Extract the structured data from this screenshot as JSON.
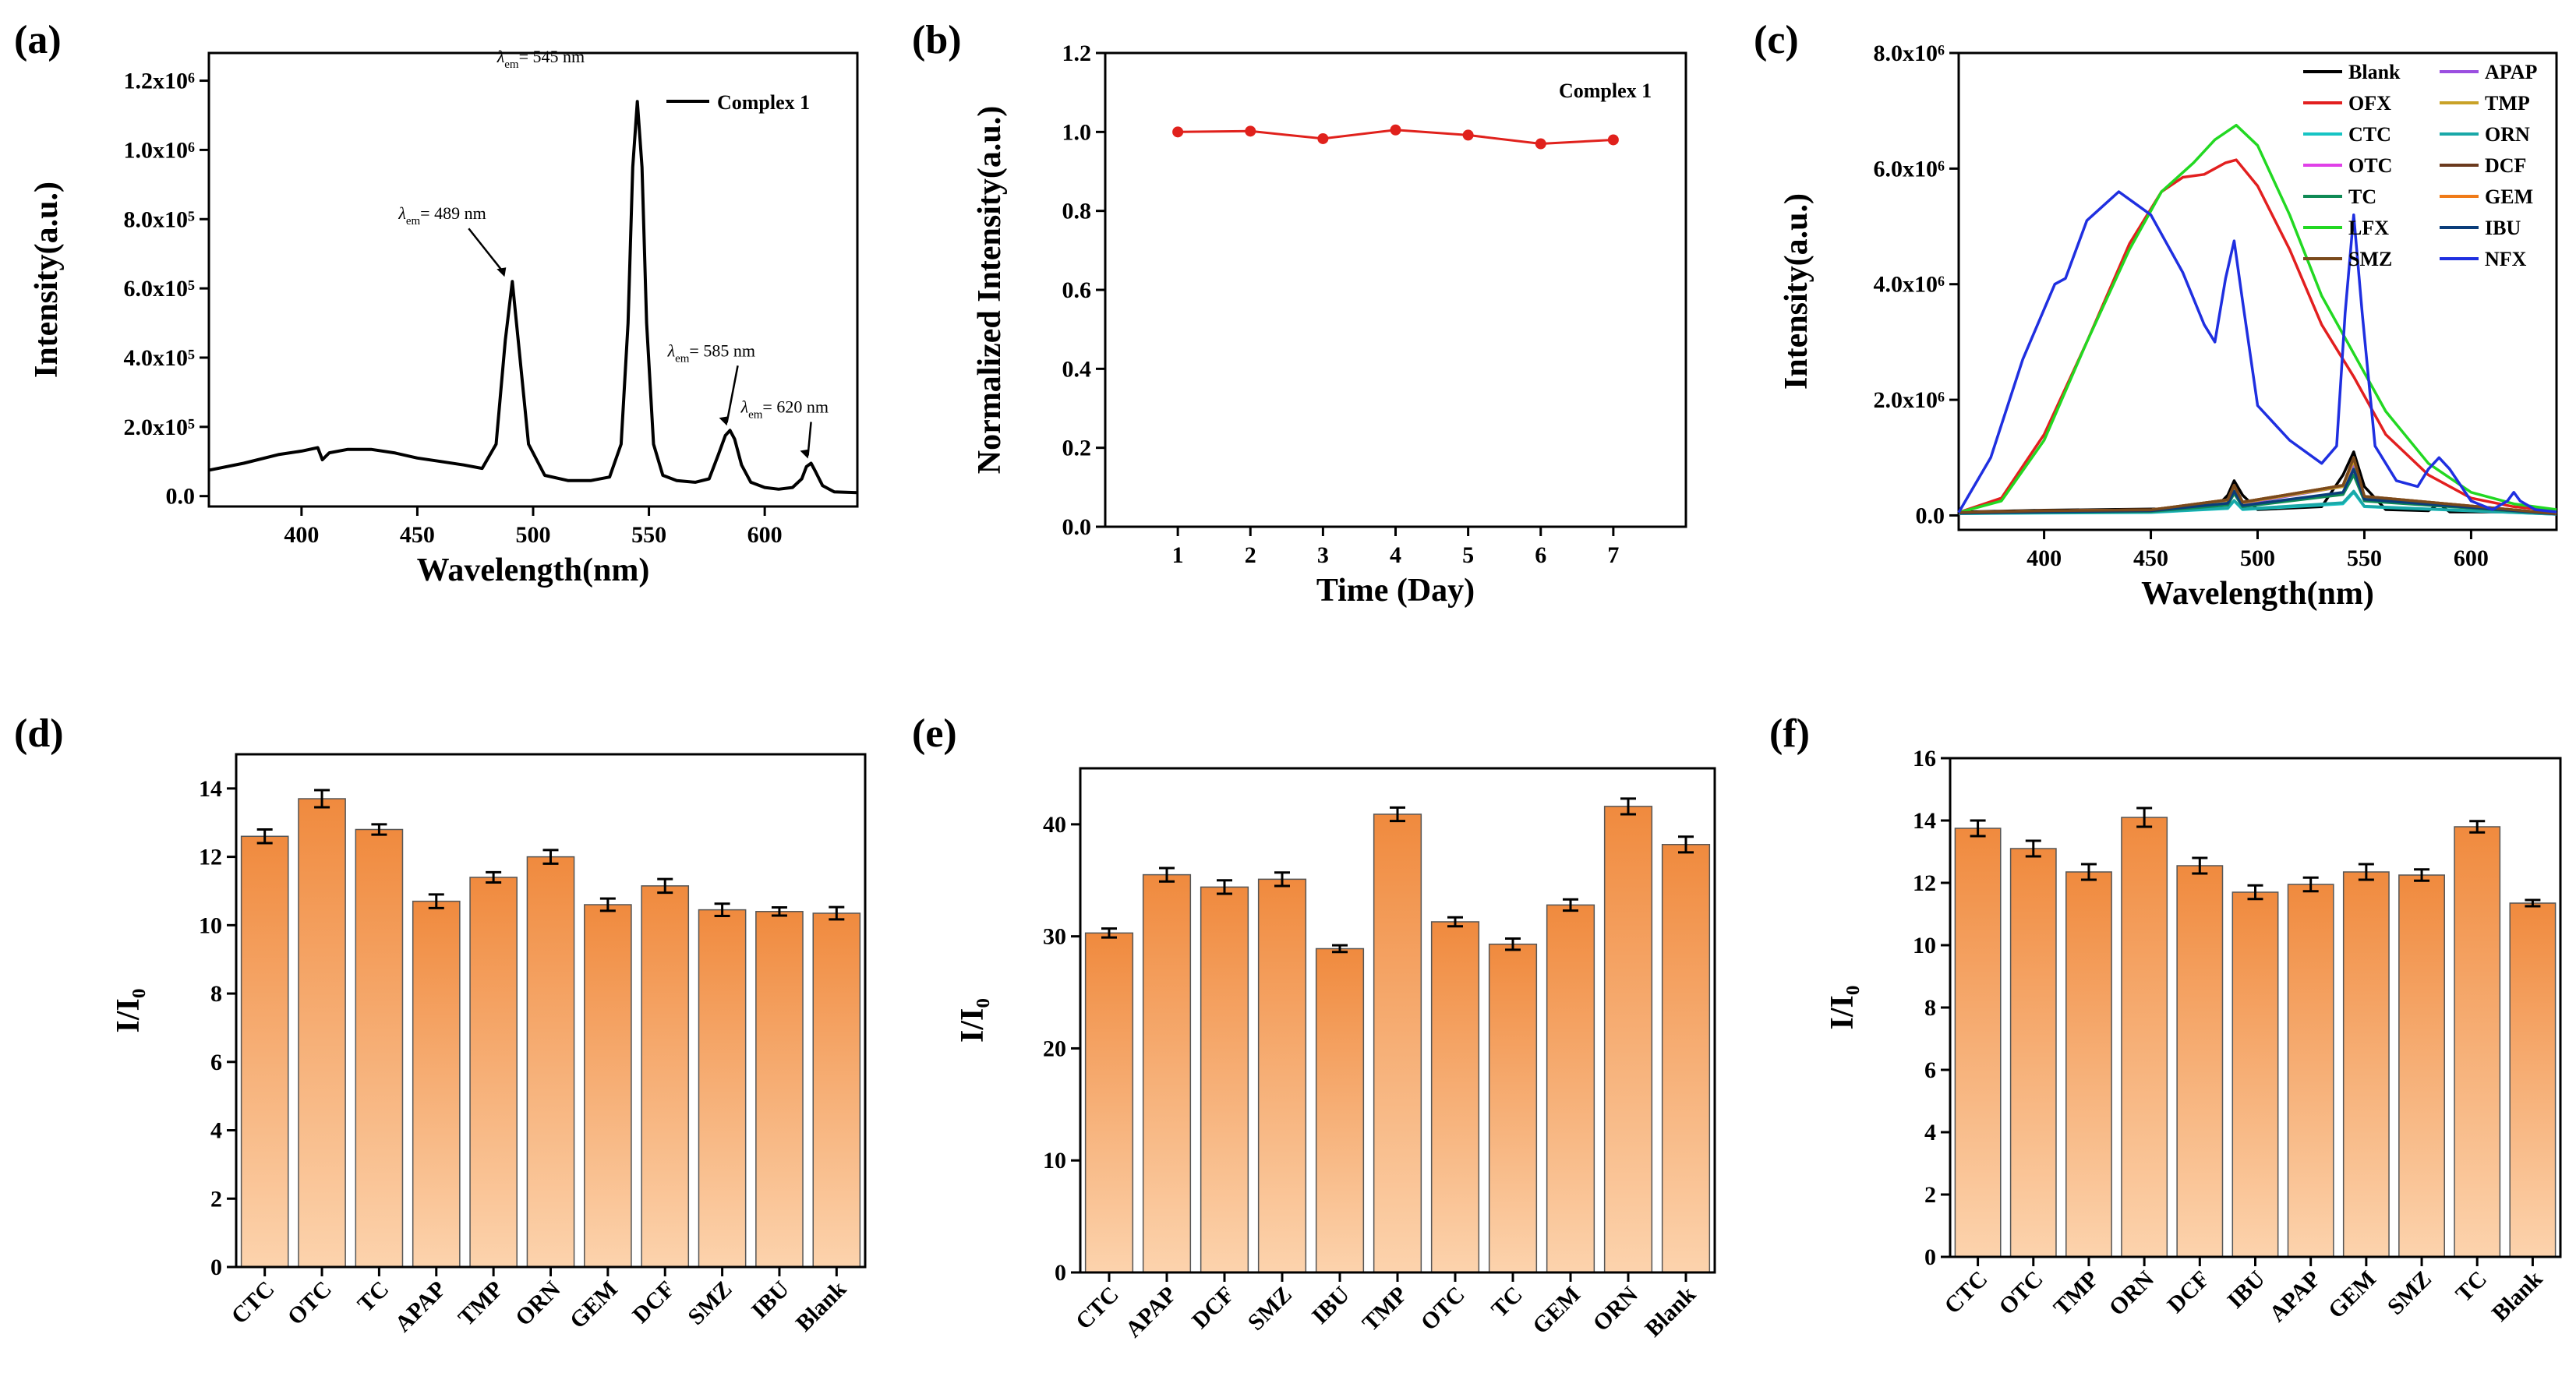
{
  "panels": [
    {
      "letter": "(a)"
    },
    {
      "letter": "(b)"
    },
    {
      "letter": "(c)"
    },
    {
      "letter": "(d)"
    },
    {
      "letter": "(e)"
    },
    {
      "letter": "(f)"
    }
  ],
  "colors": {
    "bar_top": "#f08a3e",
    "bar_bottom": "#fcd3ad",
    "stability_line": "#e0211c",
    "spectrum_line": "#000000"
  },
  "chart_data": [
    {
      "panel": "(a)",
      "type": "line",
      "xlabel": "Wavelength(nm)",
      "ylabel": "Intensity(a.u.)",
      "xlim": [
        360,
        640
      ],
      "ylim": [
        -30000,
        1280000
      ],
      "xticks": [
        400,
        450,
        500,
        550,
        600
      ],
      "xtick_labels": [
        "400",
        "450",
        "500",
        "550",
        "600"
      ],
      "yticks": [
        0,
        200000,
        400000,
        600000,
        800000,
        1000000,
        1200000
      ],
      "ytick_labels": [
        "0.0",
        "2.0x10⁵",
        "4.0x10⁵",
        "6.0x10⁵",
        "8.0x10⁵",
        "1.0x10⁶",
        "1.2x10⁶"
      ],
      "legend": [
        "Complex 1"
      ],
      "series": [
        {
          "name": "Complex 1",
          "color": "#000000",
          "x": [
            360,
            375,
            390,
            400,
            407,
            409,
            412,
            420,
            430,
            440,
            450,
            460,
            470,
            478,
            484,
            488,
            491,
            494,
            498,
            505,
            515,
            525,
            533,
            538,
            541,
            543,
            545,
            547,
            549,
            552,
            556,
            562,
            570,
            576,
            580,
            583,
            585,
            587,
            590,
            594,
            600,
            606,
            612,
            616,
            618,
            620,
            622,
            625,
            630,
            640
          ],
          "y": [
            75000,
            95000,
            120000,
            130000,
            140000,
            105000,
            125000,
            135000,
            135000,
            125000,
            110000,
            100000,
            90000,
            80000,
            150000,
            450000,
            620000,
            420000,
            150000,
            60000,
            45000,
            45000,
            55000,
            150000,
            500000,
            950000,
            1140000,
            950000,
            500000,
            150000,
            60000,
            45000,
            40000,
            50000,
            120000,
            175000,
            190000,
            165000,
            90000,
            40000,
            25000,
            20000,
            25000,
            50000,
            85000,
            95000,
            70000,
            30000,
            12000,
            10000
          ]
        }
      ],
      "annotations": [
        {
          "label": "λ",
          "sub": "em",
          "value": "= 489 nm",
          "x": 489,
          "y": 620000
        },
        {
          "label": "λ",
          "sub": "em",
          "value": "= 545 nm",
          "x": 545,
          "y": 1140000
        },
        {
          "label": "λ",
          "sub": "em",
          "value": "= 585 nm",
          "x": 585,
          "y": 190000
        },
        {
          "label": "λ",
          "sub": "em",
          "value": "= 620 nm",
          "x": 620,
          "y": 95000
        }
      ]
    },
    {
      "panel": "(b)",
      "type": "line",
      "xlabel": "Time (Day)",
      "ylabel": "Normalized Intensity(a.u.)",
      "xlim": [
        0,
        8
      ],
      "ylim": [
        0,
        1.2
      ],
      "xticks": [
        1,
        2,
        3,
        4,
        5,
        6,
        7
      ],
      "xtick_labels": [
        "1",
        "2",
        "3",
        "4",
        "5",
        "6",
        "7"
      ],
      "yticks": [
        0.0,
        0.2,
        0.4,
        0.6,
        0.8,
        1.0,
        1.2
      ],
      "ytick_labels": [
        "0.0",
        "0.2",
        "0.4",
        "0.6",
        "0.8",
        "1.0",
        "1.2"
      ],
      "legend": [
        "Complex 1"
      ],
      "series": [
        {
          "name": "Complex 1",
          "color": "#e0211c",
          "x": [
            1,
            2,
            3,
            4,
            5,
            6,
            7
          ],
          "y": [
            1.0,
            1.002,
            0.983,
            1.005,
            0.992,
            0.97,
            0.98
          ]
        }
      ]
    },
    {
      "panel": "(c)",
      "type": "line",
      "xlabel": "Wavelength(nm)",
      "ylabel": "Intensity(a.u.)",
      "xlim": [
        360,
        640
      ],
      "ylim": [
        -250000,
        8000000
      ],
      "xticks": [
        400,
        450,
        500,
        550,
        600
      ],
      "xtick_labels": [
        "400",
        "450",
        "500",
        "550",
        "600"
      ],
      "yticks": [
        0,
        2000000,
        4000000,
        6000000,
        8000000
      ],
      "ytick_labels": [
        "0.0",
        "2.0x10⁶",
        "4.0x10⁶",
        "6.0x10⁶",
        "8.0x10⁶"
      ],
      "legend": [
        "Blank",
        "APAP",
        "OFX",
        "TMP",
        "CTC",
        "ORN",
        "OTC",
        "DCF",
        "TC",
        "GEM",
        "LFX",
        "IBU",
        "SMZ",
        "NFX"
      ],
      "series": [
        {
          "name": "Blank",
          "color": "#000000",
          "x": [
            360,
            400,
            450,
            480,
            486,
            489,
            493,
            500,
            530,
            540,
            545,
            550,
            560,
            580,
            585,
            590,
            620,
            640
          ],
          "y": [
            60000,
            90000,
            110000,
            120000,
            350000,
            600000,
            350000,
            100000,
            150000,
            700000,
            1100000,
            500000,
            100000,
            80000,
            200000,
            60000,
            60000,
            40000
          ]
        },
        {
          "name": "APAP",
          "color": "#9b4fe0",
          "x": [
            360,
            400,
            450,
            486,
            489,
            493,
            540,
            545,
            550,
            640
          ],
          "y": [
            50000,
            80000,
            95000,
            250000,
            450000,
            200000,
            500000,
            900000,
            300000,
            30000
          ]
        },
        {
          "name": "OFX",
          "color": "#e21f1f",
          "x": [
            360,
            380,
            400,
            420,
            440,
            455,
            465,
            475,
            485,
            490,
            500,
            515,
            530,
            545,
            560,
            580,
            600,
            620,
            640
          ],
          "y": [
            50000,
            300000,
            1400000,
            3000000,
            4700000,
            5600000,
            5850000,
            5900000,
            6100000,
            6150000,
            5700000,
            4600000,
            3300000,
            2400000,
            1400000,
            700000,
            300000,
            150000,
            80000
          ]
        },
        {
          "name": "TMP",
          "color": "#c9a227",
          "x": [
            360,
            400,
            450,
            486,
            489,
            493,
            540,
            545,
            550,
            640
          ],
          "y": [
            50000,
            80000,
            95000,
            260000,
            500000,
            220000,
            500000,
            950000,
            320000,
            30000
          ]
        },
        {
          "name": "CTC",
          "color": "#17c4c4",
          "x": [
            360,
            400,
            450,
            486,
            489,
            493,
            540,
            545,
            550,
            640
          ],
          "y": [
            30000,
            40000,
            50000,
            120000,
            250000,
            100000,
            200000,
            400000,
            150000,
            20000
          ]
        },
        {
          "name": "ORN",
          "color": "#1aa8a8",
          "x": [
            360,
            400,
            450,
            486,
            489,
            493,
            540,
            545,
            550,
            640
          ],
          "y": [
            30000,
            45000,
            55000,
            130000,
            260000,
            110000,
            220000,
            420000,
            160000,
            20000
          ]
        },
        {
          "name": "OTC",
          "color": "#e040e8",
          "x": [
            360,
            400,
            450,
            486,
            489,
            493,
            540,
            545,
            550,
            640
          ],
          "y": [
            40000,
            60000,
            75000,
            200000,
            400000,
            160000,
            380000,
            750000,
            260000,
            25000
          ]
        },
        {
          "name": "DCF",
          "color": "#6b3a1e",
          "x": [
            360,
            400,
            450,
            486,
            489,
            493,
            540,
            545,
            550,
            640
          ],
          "y": [
            50000,
            80000,
            95000,
            270000,
            520000,
            230000,
            520000,
            1000000,
            330000,
            30000
          ]
        },
        {
          "name": "TC",
          "color": "#0f8a55",
          "x": [
            360,
            400,
            450,
            486,
            489,
            493,
            540,
            545,
            550,
            640
          ],
          "y": [
            40000,
            55000,
            70000,
            180000,
            380000,
            150000,
            360000,
            700000,
            250000,
            25000
          ]
        },
        {
          "name": "GEM",
          "color": "#f07b18",
          "x": [
            360,
            400,
            450,
            486,
            489,
            493,
            540,
            545,
            550,
            640
          ],
          "y": [
            50000,
            80000,
            95000,
            270000,
            520000,
            230000,
            520000,
            1000000,
            330000,
            30000
          ]
        },
        {
          "name": "LFX",
          "color": "#22d822",
          "x": [
            360,
            380,
            400,
            420,
            440,
            455,
            470,
            480,
            490,
            500,
            515,
            530,
            545,
            560,
            580,
            600,
            620,
            640
          ],
          "y": [
            50000,
            250000,
            1300000,
            3000000,
            4600000,
            5600000,
            6100000,
            6500000,
            6750000,
            6400000,
            5200000,
            3800000,
            2800000,
            1800000,
            900000,
            400000,
            200000,
            100000
          ]
        },
        {
          "name": "IBU",
          "color": "#0a3d7a",
          "x": [
            360,
            400,
            450,
            486,
            489,
            493,
            540,
            545,
            550,
            640
          ],
          "y": [
            40000,
            60000,
            80000,
            210000,
            420000,
            170000,
            400000,
            800000,
            280000,
            25000
          ]
        },
        {
          "name": "SMZ",
          "color": "#7a4a1c",
          "x": [
            360,
            400,
            450,
            486,
            489,
            493,
            540,
            545,
            550,
            640
          ],
          "y": [
            50000,
            80000,
            95000,
            270000,
            520000,
            230000,
            520000,
            1000000,
            330000,
            30000
          ]
        },
        {
          "name": "NFX",
          "color": "#1f2fe0",
          "x": [
            360,
            375,
            390,
            405,
            410,
            420,
            435,
            450,
            465,
            475,
            480,
            485,
            489,
            493,
            500,
            515,
            530,
            537,
            541,
            545,
            549,
            555,
            565,
            575,
            580,
            585,
            590,
            600,
            610,
            617,
            620,
            623,
            630,
            640
          ],
          "y": [
            50000,
            1000000,
            2700000,
            4000000,
            4100000,
            5100000,
            5600000,
            5200000,
            4200000,
            3300000,
            3000000,
            4100000,
            4750000,
            3700000,
            1900000,
            1300000,
            900000,
            1200000,
            3500000,
            5200000,
            3500000,
            1200000,
            600000,
            500000,
            800000,
            1000000,
            800000,
            250000,
            100000,
            250000,
            400000,
            250000,
            100000,
            60000
          ]
        }
      ]
    },
    {
      "panel": "(d)",
      "type": "bar",
      "ylabel": "I/I₀",
      "ylim": [
        0,
        15
      ],
      "yticks": [
        0,
        2,
        4,
        6,
        8,
        10,
        12,
        14
      ],
      "ytick_labels": [
        "0",
        "2",
        "4",
        "6",
        "8",
        "10",
        "12",
        "14"
      ],
      "categories": [
        "CTC",
        "OTC",
        "TC",
        "APAP",
        "TMP",
        "ORN",
        "GEM",
        "DCF",
        "SMZ",
        "IBU",
        "Blank"
      ],
      "values": [
        12.6,
        13.7,
        12.8,
        10.7,
        11.4,
        12.0,
        10.6,
        11.15,
        10.45,
        10.4,
        10.35
      ],
      "errors": [
        0.2,
        0.25,
        0.15,
        0.2,
        0.15,
        0.2,
        0.18,
        0.2,
        0.18,
        0.12,
        0.18
      ]
    },
    {
      "panel": "(e)",
      "type": "bar",
      "ylabel": "I/I₀",
      "ylim": [
        0,
        45
      ],
      "yticks": [
        0,
        10,
        20,
        30,
        40
      ],
      "ytick_labels": [
        "0",
        "10",
        "20",
        "30",
        "40"
      ],
      "categories": [
        "CTC",
        "APAP",
        "DCF",
        "SMZ",
        "IBU",
        "TMP",
        "OTC",
        "TC",
        "GEM",
        "ORN",
        "Blank"
      ],
      "values": [
        30.3,
        35.5,
        34.4,
        35.1,
        28.9,
        40.9,
        31.3,
        29.3,
        32.8,
        41.6,
        38.2
      ],
      "errors": [
        0.4,
        0.6,
        0.6,
        0.6,
        0.3,
        0.6,
        0.4,
        0.5,
        0.5,
        0.7,
        0.7
      ]
    },
    {
      "panel": "(f)",
      "type": "bar",
      "ylabel": "I/I₀",
      "ylim": [
        0,
        16
      ],
      "yticks": [
        0,
        2,
        4,
        6,
        8,
        10,
        12,
        14,
        16
      ],
      "ytick_labels": [
        "0",
        "2",
        "4",
        "6",
        "8",
        "10",
        "12",
        "14",
        "16"
      ],
      "categories": [
        "CTC",
        "OTC",
        "TMP",
        "ORN",
        "DCF",
        "IBU",
        "APAP",
        "GEM",
        "SMZ",
        "TC",
        "Blank"
      ],
      "values": [
        13.75,
        13.1,
        12.35,
        14.1,
        12.55,
        11.7,
        11.95,
        12.35,
        12.25,
        13.8,
        11.35
      ],
      "errors": [
        0.25,
        0.25,
        0.25,
        0.3,
        0.25,
        0.22,
        0.22,
        0.25,
        0.18,
        0.18,
        0.1
      ]
    }
  ]
}
